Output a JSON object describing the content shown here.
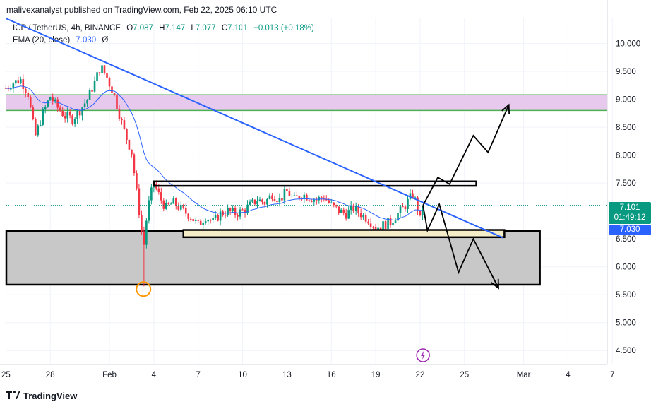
{
  "header": {
    "publish_line": "malivexanalyst published on TradingView.com, Feb 22, 2025 06:10 UTC"
  },
  "legend": {
    "symbol": "ICP / TetherUS, 4h, BINANCE",
    "o_label": "O",
    "o_value": "7.087",
    "h_label": "H",
    "h_value": "7.147",
    "l_label": "L",
    "l_value": "7.077",
    "c_label": "C",
    "c_value": "7.101",
    "change": "+0.013 (+0.18%)",
    "ema_label": "EMA (20, close)",
    "ema_value": "7.030",
    "ema_hidden_icon": "Ø"
  },
  "brand": {
    "logo_icon": "tradingview-logo-icon",
    "name": "TradingView"
  },
  "price_tags": {
    "last_price": "7.101",
    "countdown": "01:49:12",
    "ema_price": "7.030"
  },
  "colors": {
    "up": "#089981",
    "down": "#f23645",
    "ema": "#2962ff",
    "trendline": "#2962ff",
    "resistance_zone": "#e8c9ee",
    "resistance_border": "#4caf50",
    "support_zone": "#c8c8c8",
    "range_fill": "#f5ecc8",
    "marker": "#ff9800",
    "event": "#9c27b0"
  },
  "chart_data": {
    "type": "candlestick",
    "symbol": "ICP / TetherUS",
    "interval": "4h",
    "exchange": "BINANCE",
    "y_ticks": [
      10.0,
      9.5,
      9.0,
      8.5,
      8.0,
      7.5,
      7.0,
      6.5,
      6.0,
      5.5,
      5.0,
      4.5
    ],
    "y_tick_labels": [
      "10.000",
      "9.500",
      "9.000",
      "8.500",
      "8.000",
      "7.500",
      "7.000",
      "6.500",
      "6.000",
      "5.500",
      "5.000",
      "4.500"
    ],
    "ylim": [
      4.25,
      10.45
    ],
    "x_ticks": [
      {
        "label": "25",
        "day": -7
      },
      {
        "label": "28",
        "day": -4
      },
      {
        "label": "Feb",
        "day": 0
      },
      {
        "label": "4",
        "day": 3
      },
      {
        "label": "7",
        "day": 6
      },
      {
        "label": "10",
        "day": 9
      },
      {
        "label": "13",
        "day": 12
      },
      {
        "label": "16",
        "day": 15
      },
      {
        "label": "19",
        "day": 18
      },
      {
        "label": "22",
        "day": 21
      },
      {
        "label": "25",
        "day": 24
      },
      {
        "label": "Mar",
        "day": 28
      },
      {
        "label": "4",
        "day": 31
      },
      {
        "label": "7",
        "day": 34
      }
    ],
    "close_path": [
      [
        -7,
        9.2
      ],
      [
        -6.5,
        9.3
      ],
      [
        -6,
        9.35
      ],
      [
        -5.5,
        9.1
      ],
      [
        -5.2,
        8.6
      ],
      [
        -5,
        8.35
      ],
      [
        -4.5,
        8.75
      ],
      [
        -4,
        9.05
      ],
      [
        -3.5,
        8.85
      ],
      [
        -3,
        8.7
      ],
      [
        -2.5,
        8.65
      ],
      [
        -2,
        8.8
      ],
      [
        -1.5,
        9.0
      ],
      [
        -1,
        9.3
      ],
      [
        -0.6,
        9.6
      ],
      [
        -0.2,
        9.4
      ],
      [
        0.3,
        9.1
      ],
      [
        0.7,
        8.7
      ],
      [
        1.1,
        8.35
      ],
      [
        1.5,
        8.05
      ],
      [
        1.8,
        7.4
      ],
      [
        2.1,
        6.8
      ],
      [
        2.3,
        6.3
      ],
      [
        2.45,
        6.75
      ],
      [
        2.7,
        7.2
      ],
      [
        3.0,
        7.5
      ],
      [
        3.4,
        7.25
      ],
      [
        3.8,
        7.05
      ],
      [
        4.3,
        7.15
      ],
      [
        5.0,
        7.0
      ],
      [
        5.5,
        6.9
      ],
      [
        6.0,
        6.75
      ],
      [
        6.5,
        6.9
      ],
      [
        7.0,
        6.8
      ],
      [
        7.5,
        6.95
      ],
      [
        8.0,
        7.0
      ],
      [
        8.5,
        6.95
      ],
      [
        9.0,
        7.0
      ],
      [
        9.5,
        7.1
      ],
      [
        10.0,
        7.2
      ],
      [
        10.5,
        7.15
      ],
      [
        11.0,
        7.3
      ],
      [
        11.5,
        7.2
      ],
      [
        12.0,
        7.35
      ],
      [
        12.5,
        7.2
      ],
      [
        13.0,
        7.3
      ],
      [
        13.5,
        7.25
      ],
      [
        14.0,
        7.2
      ],
      [
        14.5,
        7.25
      ],
      [
        15.0,
        7.1
      ],
      [
        15.5,
        7.0
      ],
      [
        16.0,
        6.95
      ],
      [
        16.5,
        7.05
      ],
      [
        17.0,
        6.95
      ],
      [
        17.5,
        6.85
      ],
      [
        18.0,
        6.7
      ],
      [
        18.5,
        6.75
      ],
      [
        19.0,
        6.8
      ],
      [
        19.5,
        6.95
      ],
      [
        20.0,
        7.1
      ],
      [
        20.5,
        7.3
      ],
      [
        20.8,
        7.1
      ],
      [
        21.0,
        6.85
      ],
      [
        21.2,
        7.1
      ]
    ],
    "ema_last": 7.03,
    "last_price": 7.101,
    "low_marker": {
      "day": 2.3,
      "price": 5.6
    },
    "trendline": [
      [
        -7,
        10.45
      ],
      [
        26.6,
        6.52
      ]
    ],
    "resistance_zone": {
      "from": 8.8,
      "to": 9.08
    },
    "upper_box": {
      "day_from": 3.0,
      "day_to": 24.8,
      "from": 7.45,
      "to": 7.53
    },
    "lower_range": {
      "day_from": 5.0,
      "day_to": 26.7,
      "from": 6.53,
      "to": 6.66
    },
    "support_zone": {
      "day_from": -7.5,
      "day_to": 29.1,
      "from": 5.68,
      "to": 6.64
    },
    "projection_up": [
      [
        21.2,
        7.1
      ],
      [
        22.2,
        7.6
      ],
      [
        23.0,
        7.48
      ],
      [
        24.6,
        8.35
      ],
      [
        25.6,
        8.05
      ],
      [
        27.0,
        8.9
      ]
    ],
    "projection_down": [
      [
        21.2,
        7.1
      ],
      [
        21.5,
        6.65
      ],
      [
        22.3,
        7.12
      ],
      [
        23.6,
        5.9
      ],
      [
        24.6,
        6.5
      ],
      [
        26.3,
        5.62
      ]
    ],
    "event_marker_day": 21.2
  }
}
